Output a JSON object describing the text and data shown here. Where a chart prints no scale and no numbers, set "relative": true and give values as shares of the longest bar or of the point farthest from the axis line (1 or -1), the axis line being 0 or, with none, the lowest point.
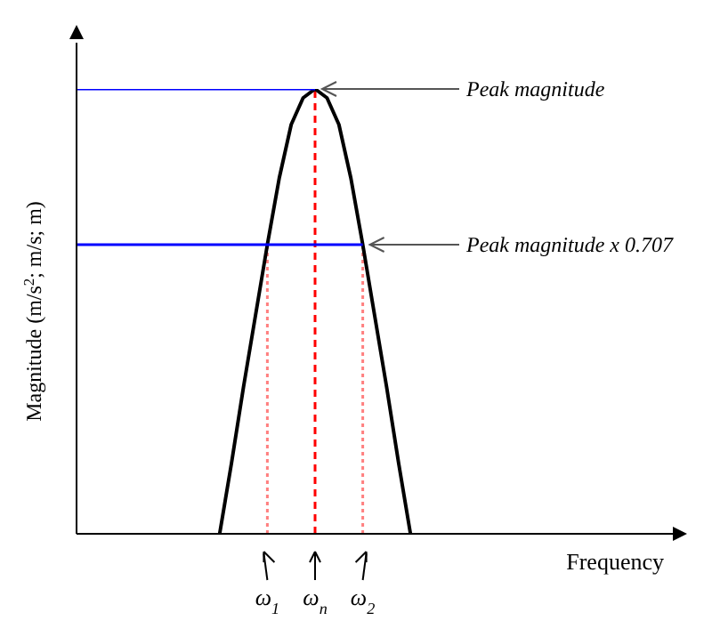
{
  "chart_data": {
    "type": "line",
    "relative": true,
    "xlabel": "Frequency",
    "ylabel": "Magnitude (m/s$^{2}$; m/s; m)",
    "categories": [
      null,
      null,
      null,
      null,
      null,
      null,
      null,
      null,
      null,
      null,
      null,
      null,
      null,
      null,
      null,
      null,
      "ω$_{1}$",
      null,
      null,
      null,
      "ω$_{n}$",
      null,
      null,
      null,
      "ω$_{2}$",
      null,
      null,
      null,
      null,
      null,
      null,
      null,
      null,
      null,
      null,
      null,
      null,
      null,
      null,
      null,
      null,
      null,
      null,
      null,
      null,
      null,
      null,
      null,
      null,
      null,
      null
    ],
    "marker": "none",
    "grid": false,
    "legend": false,
    "series": [
      {
        "color": "#000000",
        "line_style": "solid",
        "values": [
          null,
          null,
          null,
          null,
          null,
          null,
          null,
          null,
          null,
          null,
          null,
          null,
          0,
          0.16,
          0.33,
          0.49,
          0.65,
          0.8,
          0.92,
          0.98,
          1,
          0.98,
          0.92,
          0.8,
          0.65,
          0.49,
          0.33,
          0.16,
          0,
          null,
          null,
          null,
          null,
          null,
          null,
          null,
          null,
          null,
          null,
          null,
          null,
          null,
          null,
          null,
          null,
          null,
          null,
          null,
          null,
          null,
          null
        ]
      },
      {
        "color": "#0000ff",
        "line_style": "solid",
        "values": [
          1,
          1,
          1,
          1,
          1,
          1,
          1,
          1,
          1,
          1,
          1,
          1,
          1,
          1,
          1,
          1,
          1,
          1,
          1,
          1,
          1,
          null,
          null,
          null,
          null,
          null,
          null,
          null,
          null,
          null,
          null,
          null,
          null,
          null,
          null,
          null,
          null,
          null,
          null,
          null,
          null,
          null,
          null,
          null,
          null,
          null,
          null,
          null,
          null,
          null,
          null
        ]
      },
      {
        "color": "#0000ff",
        "line_style": "solid",
        "values": [
          0.65,
          0.65,
          0.65,
          0.65,
          0.65,
          0.65,
          0.65,
          0.65,
          0.65,
          0.65,
          0.65,
          0.65,
          0.65,
          0.65,
          0.65,
          0.65,
          0.65,
          0.65,
          0.65,
          0.65,
          0.65,
          0.65,
          0.65,
          0.65,
          0.65,
          null,
          null,
          null,
          null,
          null,
          null,
          null,
          null,
          null,
          null,
          null,
          null,
          null,
          null,
          null,
          null,
          null,
          null,
          null,
          null,
          null,
          null,
          null,
          null,
          null,
          null
        ]
      }
    ],
    "ref_lines": [
      {
        "axis": "x",
        "value": "ω$_{1}$",
        "color": "#ff8080",
        "line_style": "dotted"
      },
      {
        "axis": "x",
        "value": "ω$_{n}$",
        "color": "#ff0000",
        "line_style": "dashed"
      },
      {
        "axis": "x",
        "value": "ω$_{2}$",
        "color": "#ff8080",
        "line_style": "dotted"
      }
    ],
    "annotations": [
      {
        "text": "Peak magnitude",
        "x": "ω$_{n}$",
        "y": 1
      },
      {
        "text": "Peak magnitude x 0.707",
        "x": "ω$_{2}$",
        "y": 0.65
      }
    ]
  }
}
